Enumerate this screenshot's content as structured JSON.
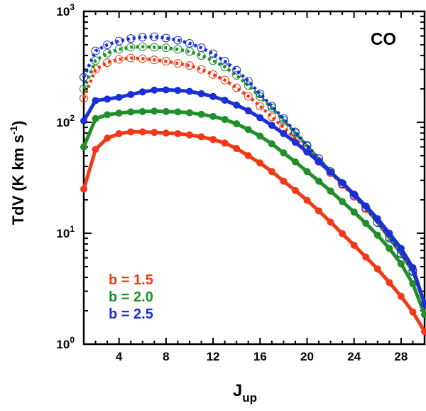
{
  "chart_data": {
    "type": "line",
    "title": "",
    "panel_label": "CO",
    "xlabel_main": "J",
    "xlabel_sub": "up",
    "ylabel_main": "TdV (K km s",
    "ylabel_sup": "-1",
    "ylabel_close": ")",
    "xlim": [
      1,
      30
    ],
    "ylim": [
      1,
      1000
    ],
    "yscale": "log",
    "x_ticks": [
      4,
      8,
      12,
      16,
      20,
      24,
      28
    ],
    "x_tick_labels": [
      "4",
      "8",
      "12",
      "16",
      "20",
      "24",
      "28"
    ],
    "y_ticks": [
      {
        "value": 1,
        "base": "10",
        "exp": "0"
      },
      {
        "value": 10,
        "base": "10",
        "exp": "1"
      },
      {
        "value": 100,
        "base": "10",
        "exp": "2"
      },
      {
        "value": 1000,
        "base": "10",
        "exp": "3"
      }
    ],
    "x": [
      1,
      2,
      3,
      4,
      5,
      6,
      7,
      8,
      9,
      10,
      11,
      12,
      13,
      14,
      15,
      16,
      17,
      18,
      19,
      20,
      21,
      22,
      23,
      24,
      25,
      26,
      27,
      28,
      29,
      30
    ],
    "series": [
      {
        "name": "b = 1.5",
        "color": "#f03a17",
        "style": "thick-line-filled-markers",
        "values": [
          25,
          57,
          72,
          79,
          82,
          82,
          81,
          80,
          79,
          77,
          74,
          70,
          65,
          58,
          50,
          43,
          36,
          29.5,
          24.3,
          19.8,
          15.9,
          12.6,
          9.9,
          7.8,
          6.1,
          4.75,
          3.6,
          2.7,
          1.95,
          1.3
        ]
      },
      {
        "name": "b = 2.0",
        "color": "#1f8f2a",
        "style": "thick-line-filled-markers",
        "values": [
          60,
          108,
          117,
          121,
          124,
          125,
          126,
          125,
          124,
          122,
          118,
          113,
          106,
          97,
          86,
          75,
          64,
          53,
          44,
          36,
          29.5,
          24,
          19.3,
          15.5,
          12.3,
          9.6,
          7.3,
          5.3,
          3.5,
          1.85
        ]
      },
      {
        "name": "b = 2.5",
        "color": "#1a2fd6",
        "style": "thick-line-filled-markers",
        "values": [
          103,
          157,
          162,
          168,
          178,
          188,
          195,
          196,
          194,
          190,
          181,
          171,
          158,
          143,
          127,
          110,
          94,
          79,
          66,
          54,
          44,
          35.5,
          28.5,
          22.5,
          17.6,
          13.5,
          10,
          7.3,
          4.9,
          2.3
        ]
      },
      {
        "name": "b = 1.5 (dotted)",
        "color": "#f03a17",
        "style": "dotted-open-circles",
        "values": [
          165,
          300,
          345,
          370,
          380,
          375,
          365,
          355,
          340,
          325,
          300,
          270,
          240,
          205,
          172,
          140,
          112,
          90,
          71,
          56,
          44.5,
          35,
          27.5,
          21.5,
          16.5,
          12.5,
          9,
          6.5,
          4.5,
          2.3
        ]
      },
      {
        "name": "b = 2.0 (dotted)",
        "color": "#1f8f2a",
        "style": "dotted-open-circles",
        "values": [
          200,
          360,
          420,
          455,
          475,
          480,
          475,
          470,
          455,
          435,
          400,
          360,
          315,
          265,
          215,
          170,
          135,
          104,
          80,
          61,
          47,
          36,
          28,
          22,
          17,
          12.5,
          9,
          6.5,
          4.5,
          2.3
        ]
      },
      {
        "name": "b = 2.5 (dotted)",
        "color": "#1a2fd6",
        "style": "dotted-open-circles",
        "values": [
          255,
          440,
          500,
          540,
          570,
          585,
          590,
          575,
          550,
          515,
          470,
          415,
          355,
          295,
          235,
          180,
          140,
          108,
          82,
          62,
          47,
          36,
          28,
          22,
          17,
          12.5,
          9.2,
          6.6,
          4.6,
          2.3
        ]
      }
    ],
    "legend": [
      {
        "label": "b = 1.5",
        "color": "#f03a17"
      },
      {
        "label": "b = 2.0",
        "color": "#1f8f2a"
      },
      {
        "label": "b = 2.5",
        "color": "#1a2fd6"
      }
    ],
    "legend_position": "bottom-left"
  }
}
